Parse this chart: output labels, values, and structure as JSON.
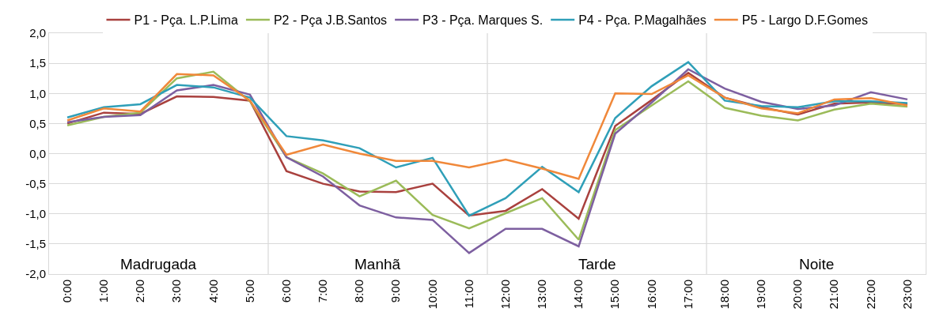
{
  "chart_data": {
    "type": "line",
    "x": [
      0,
      1,
      2,
      3,
      4,
      5,
      6,
      7,
      8,
      9,
      10,
      11,
      12,
      13,
      14,
      15,
      16,
      17,
      18,
      19,
      20,
      21,
      22,
      23
    ],
    "xlim": [
      -0.5,
      23.5
    ],
    "xticks": [
      {
        "value": 0,
        "label": "0:00"
      },
      {
        "value": 1,
        "label": "1:00"
      },
      {
        "value": 2,
        "label": "2:00"
      },
      {
        "value": 3,
        "label": "3:00"
      },
      {
        "value": 4,
        "label": "4:00"
      },
      {
        "value": 5,
        "label": "5:00"
      },
      {
        "value": 6,
        "label": "6:00"
      },
      {
        "value": 7,
        "label": "7:00"
      },
      {
        "value": 8,
        "label": "8:00"
      },
      {
        "value": 9,
        "label": "9:00"
      },
      {
        "value": 10,
        "label": "10:00"
      },
      {
        "value": 11,
        "label": "11:00"
      },
      {
        "value": 12,
        "label": "12:00"
      },
      {
        "value": 13,
        "label": "13:00"
      },
      {
        "value": 14,
        "label": "14:00"
      },
      {
        "value": 15,
        "label": "15:00"
      },
      {
        "value": 16,
        "label": "16:00"
      },
      {
        "value": 17,
        "label": "17:00"
      },
      {
        "value": 18,
        "label": "18:00"
      },
      {
        "value": 19,
        "label": "19:00"
      },
      {
        "value": 20,
        "label": "20:00"
      },
      {
        "value": 21,
        "label": "21:00"
      },
      {
        "value": 22,
        "label": "22:00"
      },
      {
        "value": 23,
        "label": "23:00"
      }
    ],
    "series": [
      {
        "name": "P1 - Pça. L.P.Lima",
        "color": "#a9413e",
        "values": [
          0.5,
          0.68,
          0.66,
          0.95,
          0.94,
          0.88,
          -0.29,
          -0.5,
          -0.63,
          -0.64,
          -0.5,
          -1.03,
          -0.95,
          -0.59,
          -1.08,
          0.46,
          0.89,
          1.34,
          0.93,
          0.77,
          0.65,
          0.83,
          0.85,
          0.82
        ]
      },
      {
        "name": "P2 - Pça J.B.Santos",
        "color": "#9bbb59",
        "values": [
          0.47,
          0.61,
          0.68,
          1.25,
          1.36,
          0.87,
          -0.06,
          -0.33,
          -0.71,
          -0.45,
          -1.02,
          -1.24,
          -0.99,
          -0.74,
          -1.43,
          0.39,
          0.8,
          1.2,
          0.76,
          0.63,
          0.55,
          0.73,
          0.83,
          0.78
        ]
      },
      {
        "name": "P3 - Pça. Marques S.",
        "color": "#7d5fa0",
        "values": [
          0.52,
          0.61,
          0.64,
          1.05,
          1.14,
          0.98,
          -0.06,
          -0.38,
          -0.86,
          -1.06,
          -1.1,
          -1.65,
          -1.25,
          -1.25,
          -1.54,
          0.33,
          0.85,
          1.4,
          1.08,
          0.86,
          0.74,
          0.8,
          1.02,
          0.9
        ]
      },
      {
        "name": "P4 - Pça. P.Magalhães",
        "color": "#2f9fb8",
        "values": [
          0.6,
          0.77,
          0.82,
          1.14,
          1.1,
          0.93,
          0.29,
          0.22,
          0.09,
          -0.23,
          -0.07,
          -1.03,
          -0.74,
          -0.22,
          -0.64,
          0.59,
          1.12,
          1.52,
          0.88,
          0.79,
          0.77,
          0.87,
          0.87,
          0.84
        ]
      },
      {
        "name": "P5 - Largo D.F.Gomes",
        "color": "#f0883a",
        "values": [
          0.55,
          0.75,
          0.7,
          1.32,
          1.3,
          0.88,
          -0.02,
          0.15,
          0.0,
          -0.12,
          -0.12,
          -0.23,
          -0.1,
          -0.25,
          -0.42,
          1.0,
          0.99,
          1.3,
          0.93,
          0.75,
          0.67,
          0.9,
          0.92,
          0.8
        ]
      }
    ],
    "ylim": [
      -2,
      2
    ],
    "yticks": [
      {
        "value": -2,
        "label": "-2,0"
      },
      {
        "value": -1.5,
        "label": "-1,5"
      },
      {
        "value": -1,
        "label": "-1,0"
      },
      {
        "value": -0.5,
        "label": "-0,5"
      },
      {
        "value": 0,
        "label": "0,0"
      },
      {
        "value": 0.5,
        "label": "0,5"
      },
      {
        "value": 1,
        "label": "1,0"
      },
      {
        "value": 1.5,
        "label": "1,5"
      },
      {
        "value": 2,
        "label": "2,0"
      }
    ],
    "ref_lines": [
      {
        "axis": "x",
        "value": 5.5,
        "color": "#d0d0d0"
      },
      {
        "axis": "x",
        "value": 11.5,
        "color": "#d0d0d0"
      },
      {
        "axis": "x",
        "value": 17.5,
        "color": "#d0d0d0"
      }
    ],
    "annotations": [
      "Madrugada",
      "Manhã",
      "Tarde",
      "Noite"
    ],
    "grid": "y",
    "legend": "top",
    "marker": "none",
    "line_style": "solid"
  }
}
